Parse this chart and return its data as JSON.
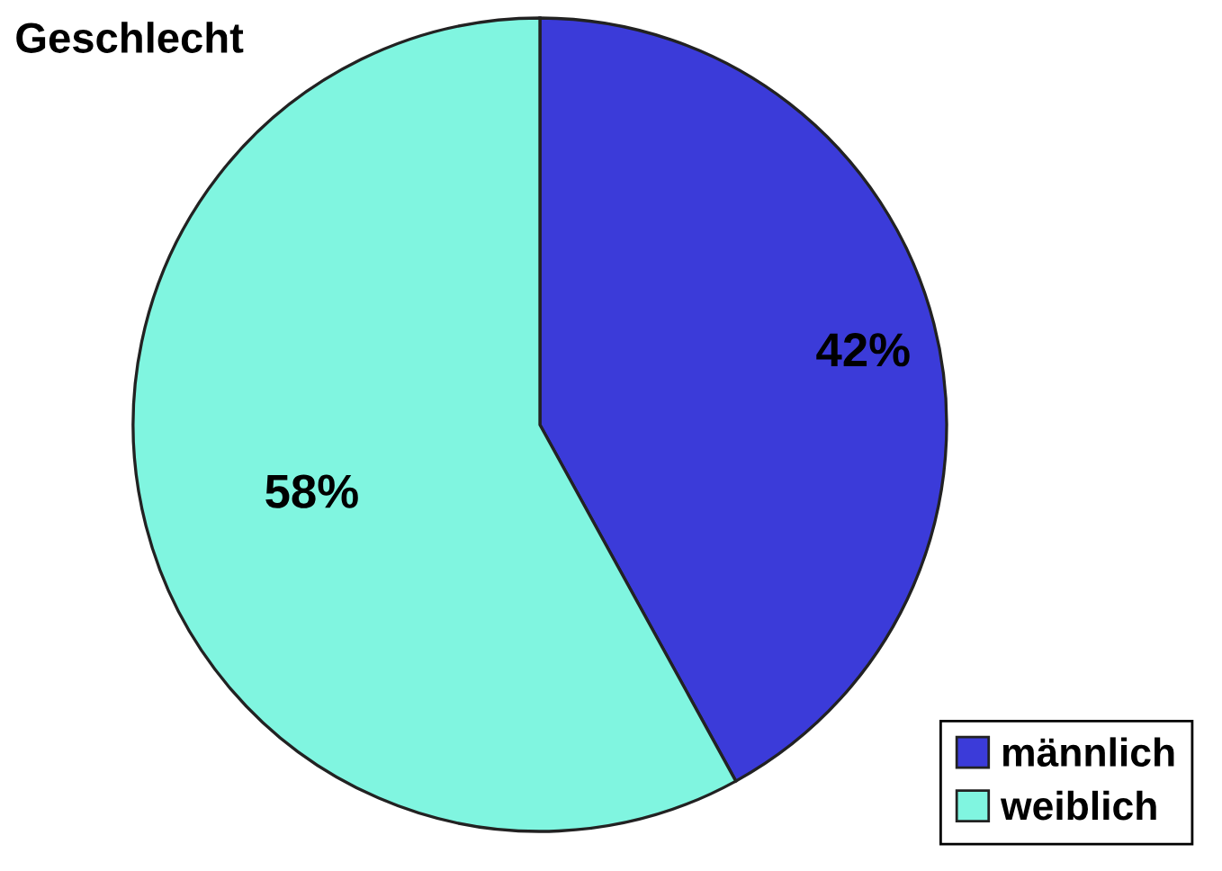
{
  "chart_data": {
    "type": "pie",
    "title": "Geschlecht",
    "categories": [
      "männlich",
      "weiblich"
    ],
    "values": [
      42,
      58
    ],
    "colors": [
      "#3b3bd9",
      "#80f5e0"
    ],
    "value_labels": [
      "42%",
      "58%"
    ],
    "legend": "bottom right"
  }
}
